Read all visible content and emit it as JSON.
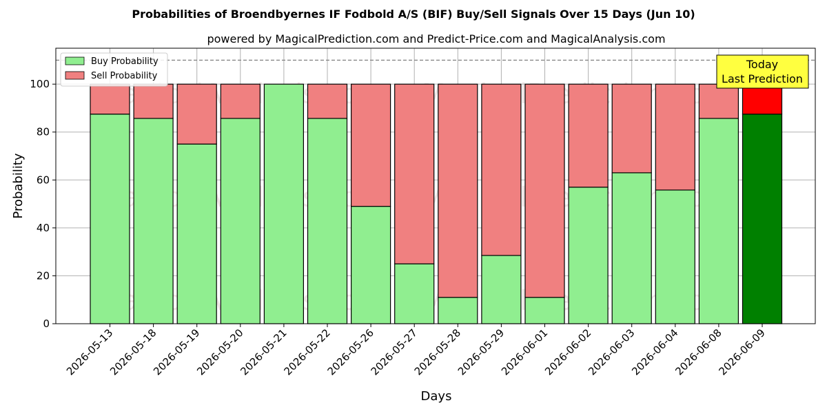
{
  "chart_data": {
    "type": "bar",
    "stacked": true,
    "title": "Probabilities of Broendbyernes IF Fodbold A/S (BIF) Buy/Sell Signals Over 15 Days (Jun 10)",
    "subtitle": "powered by MagicalPrediction.com and Predict-Price.com and MagicalAnalysis.com",
    "xlabel": "Days",
    "ylabel": "Probability",
    "ylim": [
      0,
      115
    ],
    "yticks": [
      0,
      20,
      40,
      60,
      80,
      100
    ],
    "grid": true,
    "legend_placement": "top-left",
    "reference_line": 110,
    "categories": [
      "2026-05-13",
      "2026-05-18",
      "2026-05-19",
      "2026-05-20",
      "2026-05-21",
      "2026-05-22",
      "2026-05-26",
      "2026-05-27",
      "2026-05-28",
      "2026-05-29",
      "2026-06-01",
      "2026-06-02",
      "2026-06-03",
      "2026-06-04",
      "2026-06-08",
      "2026-06-09"
    ],
    "series": [
      {
        "name": "Buy Probability",
        "color": "#90ee90",
        "highlight_color": "#008000",
        "values": [
          87.5,
          85.7,
          75,
          85.7,
          100,
          85.7,
          49,
          25,
          11,
          28.5,
          11,
          57,
          63,
          55.8,
          85.7,
          87.5
        ]
      },
      {
        "name": "Sell Probability",
        "color": "#f08080",
        "highlight_color": "#ff0000",
        "values": [
          12.5,
          14.3,
          25,
          14.3,
          0,
          14.3,
          51,
          75,
          89,
          71.5,
          89,
          43,
          37,
          44.2,
          14.3,
          12.5
        ]
      }
    ],
    "highlight_index": 15,
    "annotation": {
      "line1": "Today",
      "line2": "Last Prediction",
      "color": "#ffff40"
    },
    "watermarks": [
      "MagicalAnalysis.com",
      "MagicalPrediction.com"
    ]
  }
}
